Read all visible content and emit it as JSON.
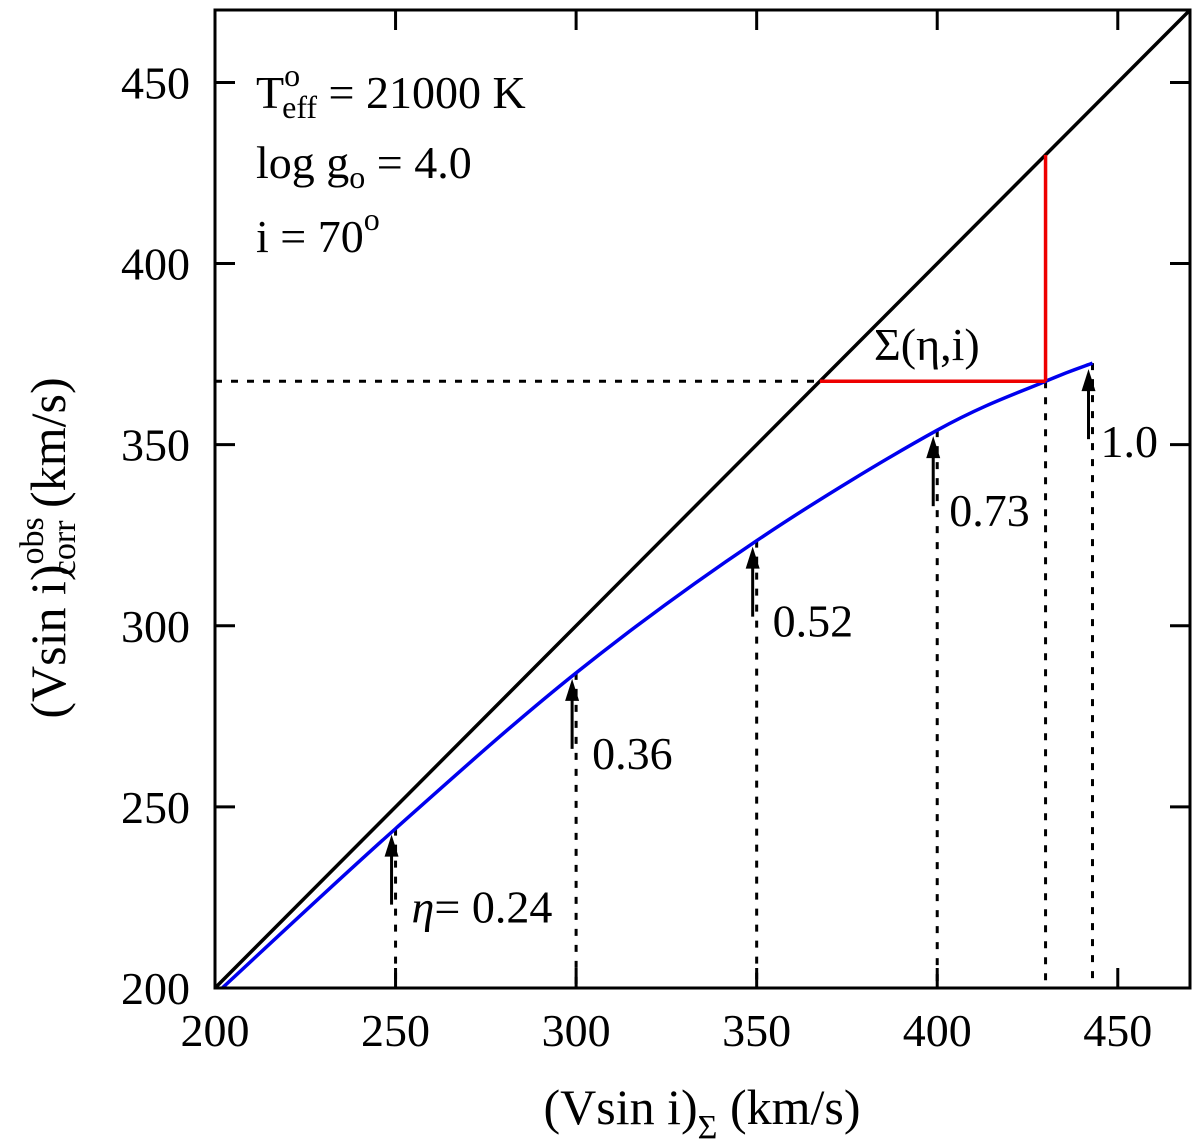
{
  "chart_data": {
    "type": "line",
    "xlim": [
      200,
      470
    ],
    "ylim": [
      200,
      470
    ],
    "x_ticks": [
      200,
      250,
      300,
      350,
      400,
      450
    ],
    "y_ticks": [
      200,
      250,
      300,
      350,
      400,
      450
    ],
    "xlabel": {
      "main": "(Vsin i)",
      "sub": "Σ",
      "unit": " (km/s)"
    },
    "ylabel": {
      "main": "(Vsin i)",
      "sup": "obs",
      "sub": "corr",
      "unit": " (km/s)"
    },
    "info_lines": [
      {
        "pre": "T",
        "sup": "o",
        "sub": "eff",
        "post": " = 21000 K"
      },
      {
        "pre": "log g",
        "sub": "o",
        "post": " = 4.0"
      },
      {
        "pre": "i = 70",
        "sup": "o"
      }
    ],
    "series": [
      {
        "color": "#000000",
        "style": "solid",
        "x": [
          200,
          470
        ],
        "y": [
          200,
          470
        ]
      },
      {
        "color": "#0000ee",
        "style": "solid",
        "x": [
          202,
          250,
          300,
          350,
          400,
          430,
          443
        ],
        "y": [
          200,
          244,
          287,
          323.5,
          354,
          367.5,
          372.5
        ]
      }
    ],
    "marked_points": [
      {
        "label": "η= 0.24",
        "x": 250,
        "y": 244
      },
      {
        "label": "0.36",
        "x": 300,
        "y": 287
      },
      {
        "label": "0.52",
        "x": 350,
        "y": 323.5
      },
      {
        "label": "0.73",
        "x": 400,
        "y": 354
      },
      {
        "label": "1.0",
        "x": 443,
        "y": 372.5
      }
    ],
    "sigma_construction": {
      "label": "Σ(η,i)",
      "color": "#ee0000",
      "x_obs": 367.5,
      "x_true": 430,
      "y_obs": 367.5,
      "y_true": 430
    }
  }
}
